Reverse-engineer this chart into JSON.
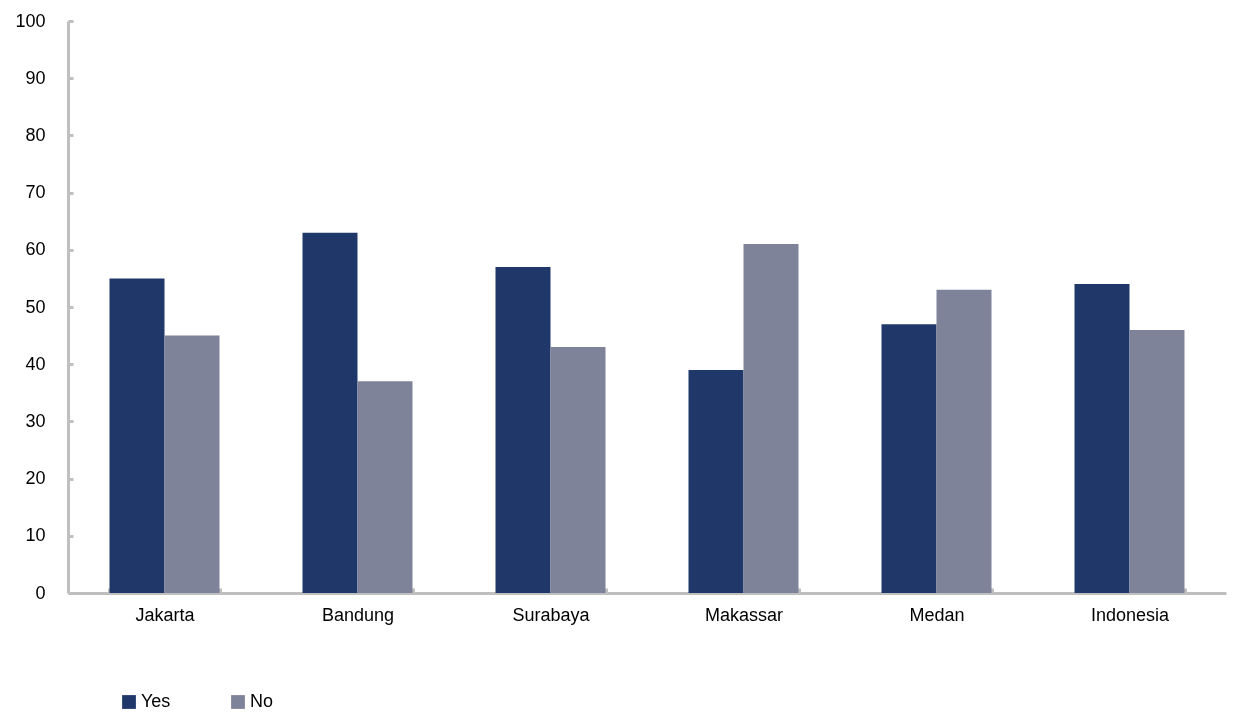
{
  "chart_data": {
    "type": "bar",
    "categories": [
      "Jakarta",
      "Bandung",
      "Surabaya",
      "Makassar",
      "Medan",
      "Indonesia"
    ],
    "series": [
      {
        "name": "Yes",
        "color": "#1f3869",
        "values": [
          55,
          63,
          57,
          39,
          47,
          54
        ]
      },
      {
        "name": "No",
        "color": "#7f8399",
        "values": [
          45,
          37,
          43,
          61,
          53,
          46
        ]
      }
    ],
    "ylim": [
      0,
      100
    ],
    "yticks": [
      0,
      10,
      20,
      30,
      40,
      50,
      60,
      70,
      80,
      90,
      100
    ],
    "grid": false,
    "legend": "bottom left"
  }
}
